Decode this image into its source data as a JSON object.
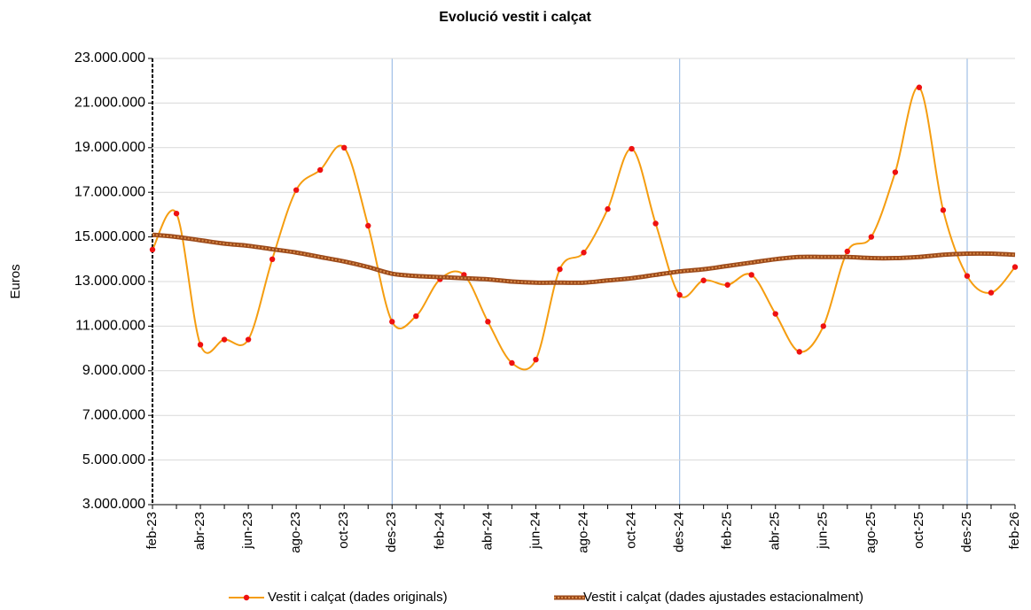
{
  "chart_data": {
    "type": "line",
    "title": "Evolució vestit i calçat",
    "y_label": "Euros",
    "categories": [
      "feb-23",
      null,
      "abr-23",
      null,
      "jun-23",
      null,
      "ago-23",
      null,
      "oct-23",
      null,
      "des-23",
      null,
      "feb-24",
      null,
      "abr-24",
      null,
      "jun-24",
      null,
      "ago-24",
      null,
      "oct-24",
      null,
      "des-24",
      null,
      "feb-25",
      null,
      "abr-25",
      null,
      "jun-25",
      null,
      "ago-25",
      null,
      "oct-25",
      null,
      "des-25",
      null,
      "feb-26"
    ],
    "series": [
      {
        "name": "Vestit i calçat (dades originals)",
        "color": "#f59d10",
        "marker_color": "#ee1111",
        "values": [
          14430000,
          16050000,
          10170000,
          10400000,
          10400000,
          14000000,
          17100000,
          18000000,
          19000000,
          15500000,
          11200000,
          11450000,
          13100000,
          13300000,
          11200000,
          9350000,
          9500000,
          13550000,
          14300000,
          16250000,
          18950000,
          15600000,
          12400000,
          13050000,
          12850000,
          13300000,
          11550000,
          9850000,
          11000000,
          14350000,
          15000000,
          17900000,
          21700000,
          16200000,
          13250000,
          12500000,
          13650000
        ]
      },
      {
        "name": "Vestit i calçat (dades ajustades estacionalment)",
        "color": "#9c4a1a",
        "dash_color": "#d98c4a",
        "values": [
          15100000,
          15000000,
          14850000,
          14700000,
          14600000,
          14450000,
          14300000,
          14100000,
          13900000,
          13650000,
          13350000,
          13250000,
          13200000,
          13150000,
          13100000,
          13000000,
          12950000,
          12950000,
          12950000,
          13050000,
          13150000,
          13300000,
          13450000,
          13550000,
          13700000,
          13850000,
          14000000,
          14100000,
          14100000,
          14100000,
          14050000,
          14050000,
          14100000,
          14200000,
          14250000,
          14250000,
          14200000
        ]
      }
    ],
    "ylim": [
      3000000,
      23000000
    ],
    "yticks": [
      {
        "value": 3000000,
        "label": "3.000.000"
      },
      {
        "value": 5000000,
        "label": "5.000.000"
      },
      {
        "value": 7000000,
        "label": "7.000.000"
      },
      {
        "value": 9000000,
        "label": "9.000.000"
      },
      {
        "value": 11000000,
        "label": "11.000.000"
      },
      {
        "value": 13000000,
        "label": "13.000.000"
      },
      {
        "value": 15000000,
        "label": "15.000.000"
      },
      {
        "value": 17000000,
        "label": "17.000.000"
      },
      {
        "value": 19000000,
        "label": "19.000.000"
      },
      {
        "value": 21000000,
        "label": "21.000.000"
      },
      {
        "value": 23000000,
        "label": "23.000.000"
      }
    ],
    "grid": true,
    "legend": "bottom"
  }
}
